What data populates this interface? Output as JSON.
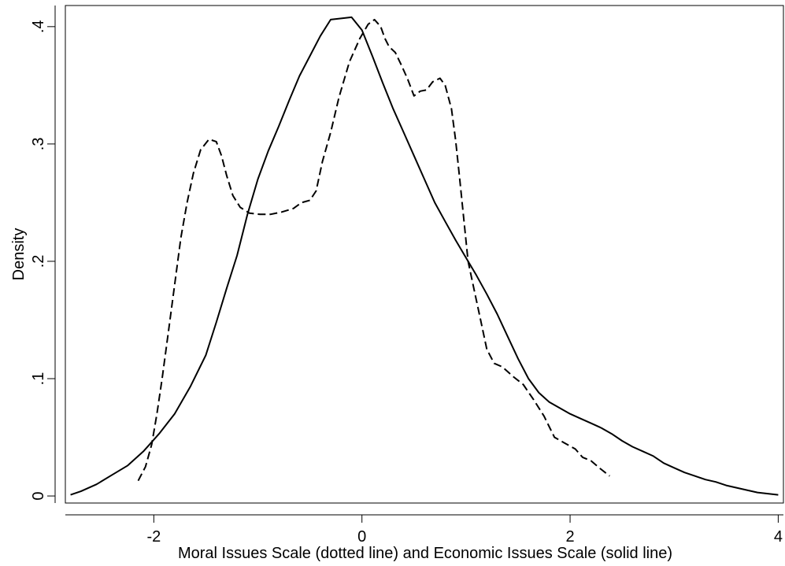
{
  "chart_data": {
    "type": "line",
    "title": "",
    "xlabel": "Moral Issues Scale (dotted line) and Economic Issues Scale (solid line)",
    "ylabel": "Density",
    "xlim": [
      -2.85,
      4.05
    ],
    "ylim": [
      -0.006,
      0.418
    ],
    "x_ticks": [
      -2,
      0,
      2,
      4
    ],
    "x_tick_labels": [
      "-2",
      "0",
      "2",
      "4"
    ],
    "y_ticks": [
      0,
      0.1,
      0.2,
      0.3,
      0.4
    ],
    "y_tick_labels": [
      "0",
      ".1",
      ".2",
      ".3",
      ".4"
    ],
    "grid": false,
    "legend": "none",
    "series": [
      {
        "style": "dashed",
        "color": "#000000",
        "points": [
          [
            -2.15,
            0.013
          ],
          [
            -2.08,
            0.025
          ],
          [
            -2.02,
            0.044
          ],
          [
            -1.97,
            0.07
          ],
          [
            -1.92,
            0.1
          ],
          [
            -1.86,
            0.14
          ],
          [
            -1.8,
            0.18
          ],
          [
            -1.74,
            0.22
          ],
          [
            -1.68,
            0.25
          ],
          [
            -1.62,
            0.275
          ],
          [
            -1.55,
            0.295
          ],
          [
            -1.47,
            0.304
          ],
          [
            -1.4,
            0.302
          ],
          [
            -1.35,
            0.29
          ],
          [
            -1.3,
            0.273
          ],
          [
            -1.24,
            0.256
          ],
          [
            -1.17,
            0.246
          ],
          [
            -1.08,
            0.241
          ],
          [
            -0.98,
            0.24
          ],
          [
            -0.88,
            0.24
          ],
          [
            -0.77,
            0.242
          ],
          [
            -0.66,
            0.245
          ],
          [
            -0.58,
            0.25
          ],
          [
            -0.5,
            0.252
          ],
          [
            -0.44,
            0.26
          ],
          [
            -0.38,
            0.285
          ],
          [
            -0.3,
            0.31
          ],
          [
            -0.22,
            0.34
          ],
          [
            -0.12,
            0.37
          ],
          [
            -0.02,
            0.39
          ],
          [
            0.06,
            0.402
          ],
          [
            0.12,
            0.406
          ],
          [
            0.18,
            0.4
          ],
          [
            0.22,
            0.39
          ],
          [
            0.26,
            0.383
          ],
          [
            0.32,
            0.378
          ],
          [
            0.38,
            0.367
          ],
          [
            0.44,
            0.355
          ],
          [
            0.5,
            0.341
          ],
          [
            0.56,
            0.345
          ],
          [
            0.62,
            0.346
          ],
          [
            0.68,
            0.353
          ],
          [
            0.75,
            0.356
          ],
          [
            0.8,
            0.35
          ],
          [
            0.86,
            0.33
          ],
          [
            0.9,
            0.303
          ],
          [
            0.94,
            0.27
          ],
          [
            0.98,
            0.235
          ],
          [
            1.02,
            0.2
          ],
          [
            1.08,
            0.175
          ],
          [
            1.14,
            0.15
          ],
          [
            1.2,
            0.125
          ],
          [
            1.27,
            0.113
          ],
          [
            1.35,
            0.11
          ],
          [
            1.45,
            0.102
          ],
          [
            1.55,
            0.095
          ],
          [
            1.65,
            0.082
          ],
          [
            1.75,
            0.068
          ],
          [
            1.85,
            0.05
          ],
          [
            1.95,
            0.045
          ],
          [
            2.05,
            0.04
          ],
          [
            2.12,
            0.033
          ],
          [
            2.2,
            0.03
          ],
          [
            2.28,
            0.024
          ],
          [
            2.38,
            0.017
          ]
        ]
      },
      {
        "style": "solid",
        "color": "#000000",
        "points": [
          [
            -2.8,
            0.001
          ],
          [
            -2.7,
            0.004
          ],
          [
            -2.55,
            0.01
          ],
          [
            -2.4,
            0.018
          ],
          [
            -2.25,
            0.026
          ],
          [
            -2.1,
            0.038
          ],
          [
            -1.95,
            0.053
          ],
          [
            -1.8,
            0.07
          ],
          [
            -1.65,
            0.093
          ],
          [
            -1.5,
            0.12
          ],
          [
            -1.4,
            0.148
          ],
          [
            -1.3,
            0.177
          ],
          [
            -1.2,
            0.205
          ],
          [
            -1.1,
            0.24
          ],
          [
            -1.0,
            0.27
          ],
          [
            -0.9,
            0.294
          ],
          [
            -0.8,
            0.315
          ],
          [
            -0.7,
            0.337
          ],
          [
            -0.6,
            0.358
          ],
          [
            -0.5,
            0.375
          ],
          [
            -0.4,
            0.392
          ],
          [
            -0.3,
            0.406
          ],
          [
            -0.2,
            0.407
          ],
          [
            -0.1,
            0.408
          ],
          [
            0.0,
            0.397
          ],
          [
            0.1,
            0.375
          ],
          [
            0.2,
            0.352
          ],
          [
            0.3,
            0.33
          ],
          [
            0.4,
            0.31
          ],
          [
            0.5,
            0.29
          ],
          [
            0.6,
            0.27
          ],
          [
            0.7,
            0.25
          ],
          [
            0.8,
            0.234
          ],
          [
            0.9,
            0.218
          ],
          [
            1.0,
            0.203
          ],
          [
            1.1,
            0.188
          ],
          [
            1.2,
            0.172
          ],
          [
            1.3,
            0.155
          ],
          [
            1.4,
            0.136
          ],
          [
            1.5,
            0.117
          ],
          [
            1.6,
            0.1
          ],
          [
            1.7,
            0.088
          ],
          [
            1.8,
            0.08
          ],
          [
            1.9,
            0.075
          ],
          [
            2.0,
            0.07
          ],
          [
            2.1,
            0.066
          ],
          [
            2.2,
            0.062
          ],
          [
            2.3,
            0.058
          ],
          [
            2.4,
            0.053
          ],
          [
            2.5,
            0.047
          ],
          [
            2.6,
            0.042
          ],
          [
            2.7,
            0.038
          ],
          [
            2.8,
            0.034
          ],
          [
            2.9,
            0.028
          ],
          [
            3.0,
            0.024
          ],
          [
            3.1,
            0.02
          ],
          [
            3.2,
            0.017
          ],
          [
            3.3,
            0.014
          ],
          [
            3.4,
            0.012
          ],
          [
            3.5,
            0.009
          ],
          [
            3.6,
            0.007
          ],
          [
            3.7,
            0.005
          ],
          [
            3.8,
            0.003
          ],
          [
            3.9,
            0.002
          ],
          [
            4.0,
            0.001
          ]
        ]
      }
    ]
  }
}
